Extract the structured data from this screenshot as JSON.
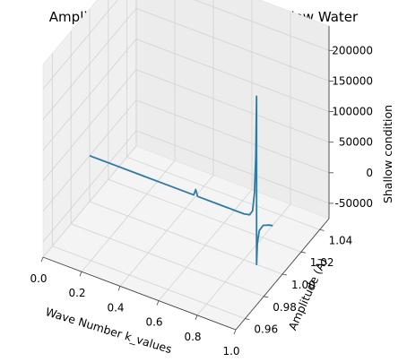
{
  "chart_data": {
    "type": "line",
    "projection": "3d",
    "title": "Amplitude vs. Wave Number in Shallow Water",
    "xlabel": "Wave Number  k_values",
    "ylabel": "Amplitude (A)",
    "zlabel": "Shallow condition",
    "xlim": [
      0.0,
      1.0
    ],
    "ylim": [
      0.95,
      1.05
    ],
    "zlim": [
      -75000,
      240000
    ],
    "x_ticks": [
      "0.0",
      "0.2",
      "0.4",
      "0.6",
      "0.8",
      "1.0"
    ],
    "y_ticks": [
      "0.96",
      "0.98",
      "1.00",
      "1.02",
      "1.04"
    ],
    "z_ticks": [
      "-50000",
      "0",
      "50000",
      "100000",
      "150000",
      "200000"
    ],
    "grid": true,
    "series_color": "#2f7aa6",
    "series": [
      {
        "points": [
          {
            "x": 0.0,
            "y": 1.0,
            "z": 0
          },
          {
            "x": 0.1,
            "y": 1.0,
            "z": 0
          },
          {
            "x": 0.2,
            "y": 1.0,
            "z": 0
          },
          {
            "x": 0.3,
            "y": 1.0,
            "z": 0
          },
          {
            "x": 0.4,
            "y": 1.0,
            "z": 0
          },
          {
            "x": 0.5,
            "y": 1.0,
            "z": 0
          },
          {
            "x": 0.54,
            "y": 1.0,
            "z": 0
          },
          {
            "x": 0.55,
            "y": 1.0,
            "z": 10000
          },
          {
            "x": 0.56,
            "y": 1.0,
            "z": 0
          },
          {
            "x": 0.65,
            "y": 1.0,
            "z": 0
          },
          {
            "x": 0.75,
            "y": 1.0,
            "z": 0
          },
          {
            "x": 0.8,
            "y": 1.0,
            "z": 0
          },
          {
            "x": 0.83,
            "y": 1.0,
            "z": 2000
          },
          {
            "x": 0.845,
            "y": 1.0,
            "z": 10000
          },
          {
            "x": 0.855,
            "y": 1.0,
            "z": 40000
          },
          {
            "x": 0.862,
            "y": 1.0,
            "z": 100000
          },
          {
            "x": 0.866,
            "y": 1.0,
            "z": 200000
          },
          {
            "x": 0.8662,
            "y": 1.0,
            "z": -75000
          },
          {
            "x": 0.87,
            "y": 1.0,
            "z": -40000
          },
          {
            "x": 0.88,
            "y": 1.0,
            "z": -18000
          },
          {
            "x": 0.9,
            "y": 1.0,
            "z": -7000
          },
          {
            "x": 0.93,
            "y": 1.0,
            "z": -3000
          },
          {
            "x": 0.95,
            "y": 1.0,
            "z": -1500
          }
        ]
      }
    ]
  }
}
